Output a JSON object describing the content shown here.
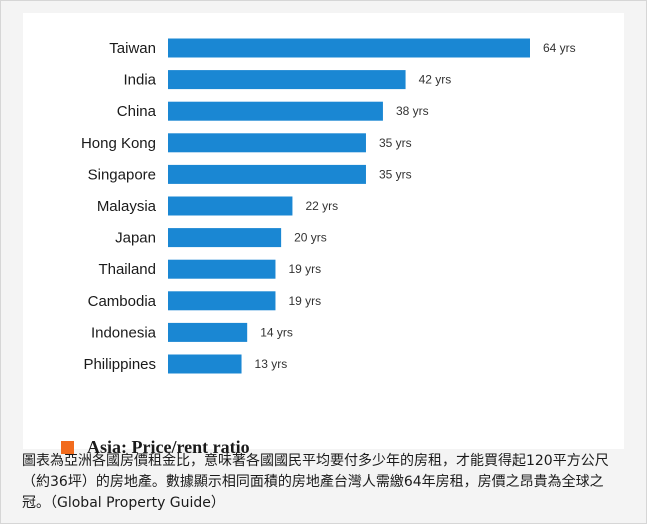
{
  "colors": {
    "bar": "#1a87d3",
    "legend_swatch": "#f26b1d"
  },
  "legend": {
    "label": "Asia: Price/rent ratio"
  },
  "caption": "圖表為亞洲各國房價租金比，意味著各國國民平均要付多少年的房租，才能買得起120平方公尺（約36坪）的房地產。數據顯示相同面積的房地產台灣人需繳64年房租，房價之昂貴為全球之冠。（Global Property Guide）",
  "chart_data": {
    "type": "bar",
    "orientation": "horizontal",
    "categories": [
      "Taiwan",
      "India",
      "China",
      "Hong Kong",
      "Singapore",
      "Malaysia",
      "Japan",
      "Thailand",
      "Cambodia",
      "Indonesia",
      "Philippines"
    ],
    "values": [
      64,
      42,
      38,
      35,
      35,
      22,
      20,
      19,
      19,
      14,
      13
    ],
    "data_labels": [
      "64 yrs",
      "42 yrs",
      "38 yrs",
      "35 yrs",
      "35 yrs",
      "22 yrs",
      "20 yrs",
      "19 yrs",
      "19 yrs",
      "14 yrs",
      "13 yrs"
    ],
    "value_unit": "yrs",
    "title": "",
    "xlabel": "",
    "ylabel": "",
    "grid": false,
    "legend_position": "bottom-left"
  }
}
